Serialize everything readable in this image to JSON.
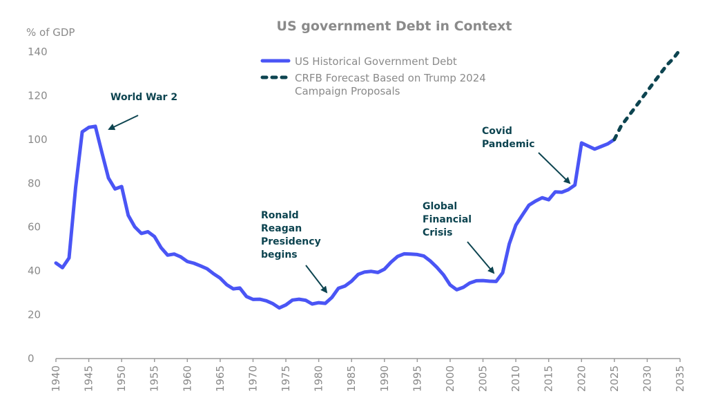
{
  "chart_data": {
    "type": "line",
    "title": "US government Debt in Context",
    "xlabel": "",
    "ylabel": "% of GDP",
    "xlim": [
      1940,
      2035
    ],
    "ylim": [
      0,
      140
    ],
    "grid": false,
    "x_ticks": [
      1940,
      1945,
      1950,
      1955,
      1960,
      1965,
      1970,
      1975,
      1980,
      1985,
      1990,
      1995,
      2000,
      2005,
      2010,
      2015,
      2020,
      2025,
      2030,
      2035
    ],
    "x_tick_labels": [
      "1940",
      "1945",
      "1950",
      "1955",
      "1960",
      "1965",
      "1970",
      "1975",
      "1980",
      "1985",
      "1990",
      "1995",
      "2000",
      "2005",
      "2010",
      "2015",
      "2020",
      "2025",
      "2030",
      "2035"
    ],
    "y_ticks": [
      0,
      20,
      40,
      60,
      80,
      100,
      120,
      140
    ],
    "y_tick_labels": [
      "0",
      "20",
      "40",
      "60",
      "80",
      "100",
      "120",
      "140"
    ],
    "legend_position": "top-center",
    "series": [
      {
        "name": "US Historical Government Debt",
        "color": "#4a55f5",
        "style": "solid",
        "x": [
          1940,
          1941,
          1942,
          1943,
          1944,
          1945,
          1946,
          1947,
          1948,
          1949,
          1950,
          1951,
          1952,
          1953,
          1954,
          1955,
          1956,
          1957,
          1958,
          1959,
          1960,
          1961,
          1962,
          1963,
          1964,
          1965,
          1966,
          1967,
          1968,
          1969,
          1970,
          1971,
          1972,
          1973,
          1974,
          1975,
          1976,
          1977,
          1978,
          1979,
          1980,
          1981,
          1982,
          1983,
          1984,
          1985,
          1986,
          1987,
          1988,
          1989,
          1990,
          1991,
          1992,
          1993,
          1994,
          1995,
          1996,
          1997,
          1998,
          1999,
          2000,
          2001,
          2002,
          2003,
          2004,
          2005,
          2006,
          2007,
          2008,
          2009,
          2010,
          2011,
          2012,
          2013,
          2014,
          2015,
          2016,
          2017,
          2018,
          2019,
          2020,
          2021,
          2022,
          2023,
          2024,
          2025
        ],
        "values": [
          43.6,
          41.5,
          45.9,
          78,
          103.5,
          105.5,
          106,
          94,
          82.4,
          77.4,
          78.5,
          65.4,
          60.1,
          57.1,
          57.9,
          55.7,
          50.6,
          47.2,
          47.7,
          46.4,
          44.3,
          43.5,
          42.3,
          41.0,
          38.7,
          36.7,
          33.7,
          31.8,
          32.2,
          28.3,
          27.0,
          27.1,
          26.4,
          25.1,
          23.1,
          24.5,
          26.7,
          27.1,
          26.6,
          24.9,
          25.5,
          25.2,
          27.9,
          32.1,
          33.1,
          35.3,
          38.4,
          39.5,
          39.8,
          39.3,
          40.8,
          44.0,
          46.6,
          47.8,
          47.7,
          47.5,
          46.8,
          44.5,
          41.6,
          38.2,
          33.6,
          31.4,
          32.5,
          34.5,
          35.5,
          35.6,
          35.3,
          35.2,
          39.2,
          52.3,
          60.9,
          65.5,
          70.0,
          71.9,
          73.4,
          72.5,
          76.1,
          75.9,
          77.1,
          79.2,
          98.4,
          97.0,
          95.6,
          96.8,
          98.0,
          100.0
        ]
      },
      {
        "name": "CRFB Forecast Based on Trump 2024 Campaign Proposals",
        "color": "#0d4450",
        "style": "dashed",
        "x": [
          2025,
          2026,
          2027,
          2028,
          2029,
          2030,
          2031,
          2032,
          2033,
          2034,
          2035
        ],
        "values": [
          100,
          106,
          110,
          114,
          118,
          122,
          126,
          130,
          134,
          137,
          141
        ]
      }
    ],
    "legend": [
      {
        "label": "US Historical Government Debt",
        "style": "solid",
        "color": "#4a55f5"
      },
      {
        "label_lines": [
          "CRFB Forecast Based on Trump 2024",
          "Campaign Proposals"
        ],
        "style": "dashed",
        "color": "#0d4450"
      }
    ],
    "annotations": [
      {
        "lines": [
          "World War 2"
        ],
        "points_to": {
          "x": 1946,
          "y": 106
        }
      },
      {
        "lines": [
          "Ronald",
          "Reagan",
          "Presidency",
          "begins"
        ],
        "points_to": {
          "x": 1981,
          "y": 25.2
        }
      },
      {
        "lines": [
          "Global",
          "Financial",
          "Crisis"
        ],
        "points_to": {
          "x": 2007,
          "y": 35.2
        }
      },
      {
        "lines": [
          "Covid",
          "Pandemic"
        ],
        "points_to": {
          "x": 2019,
          "y": 79.2
        }
      }
    ],
    "annotation_color": "#0d4450",
    "text_color": "#8a8a8a",
    "axis_color": "#9a9a9a"
  }
}
